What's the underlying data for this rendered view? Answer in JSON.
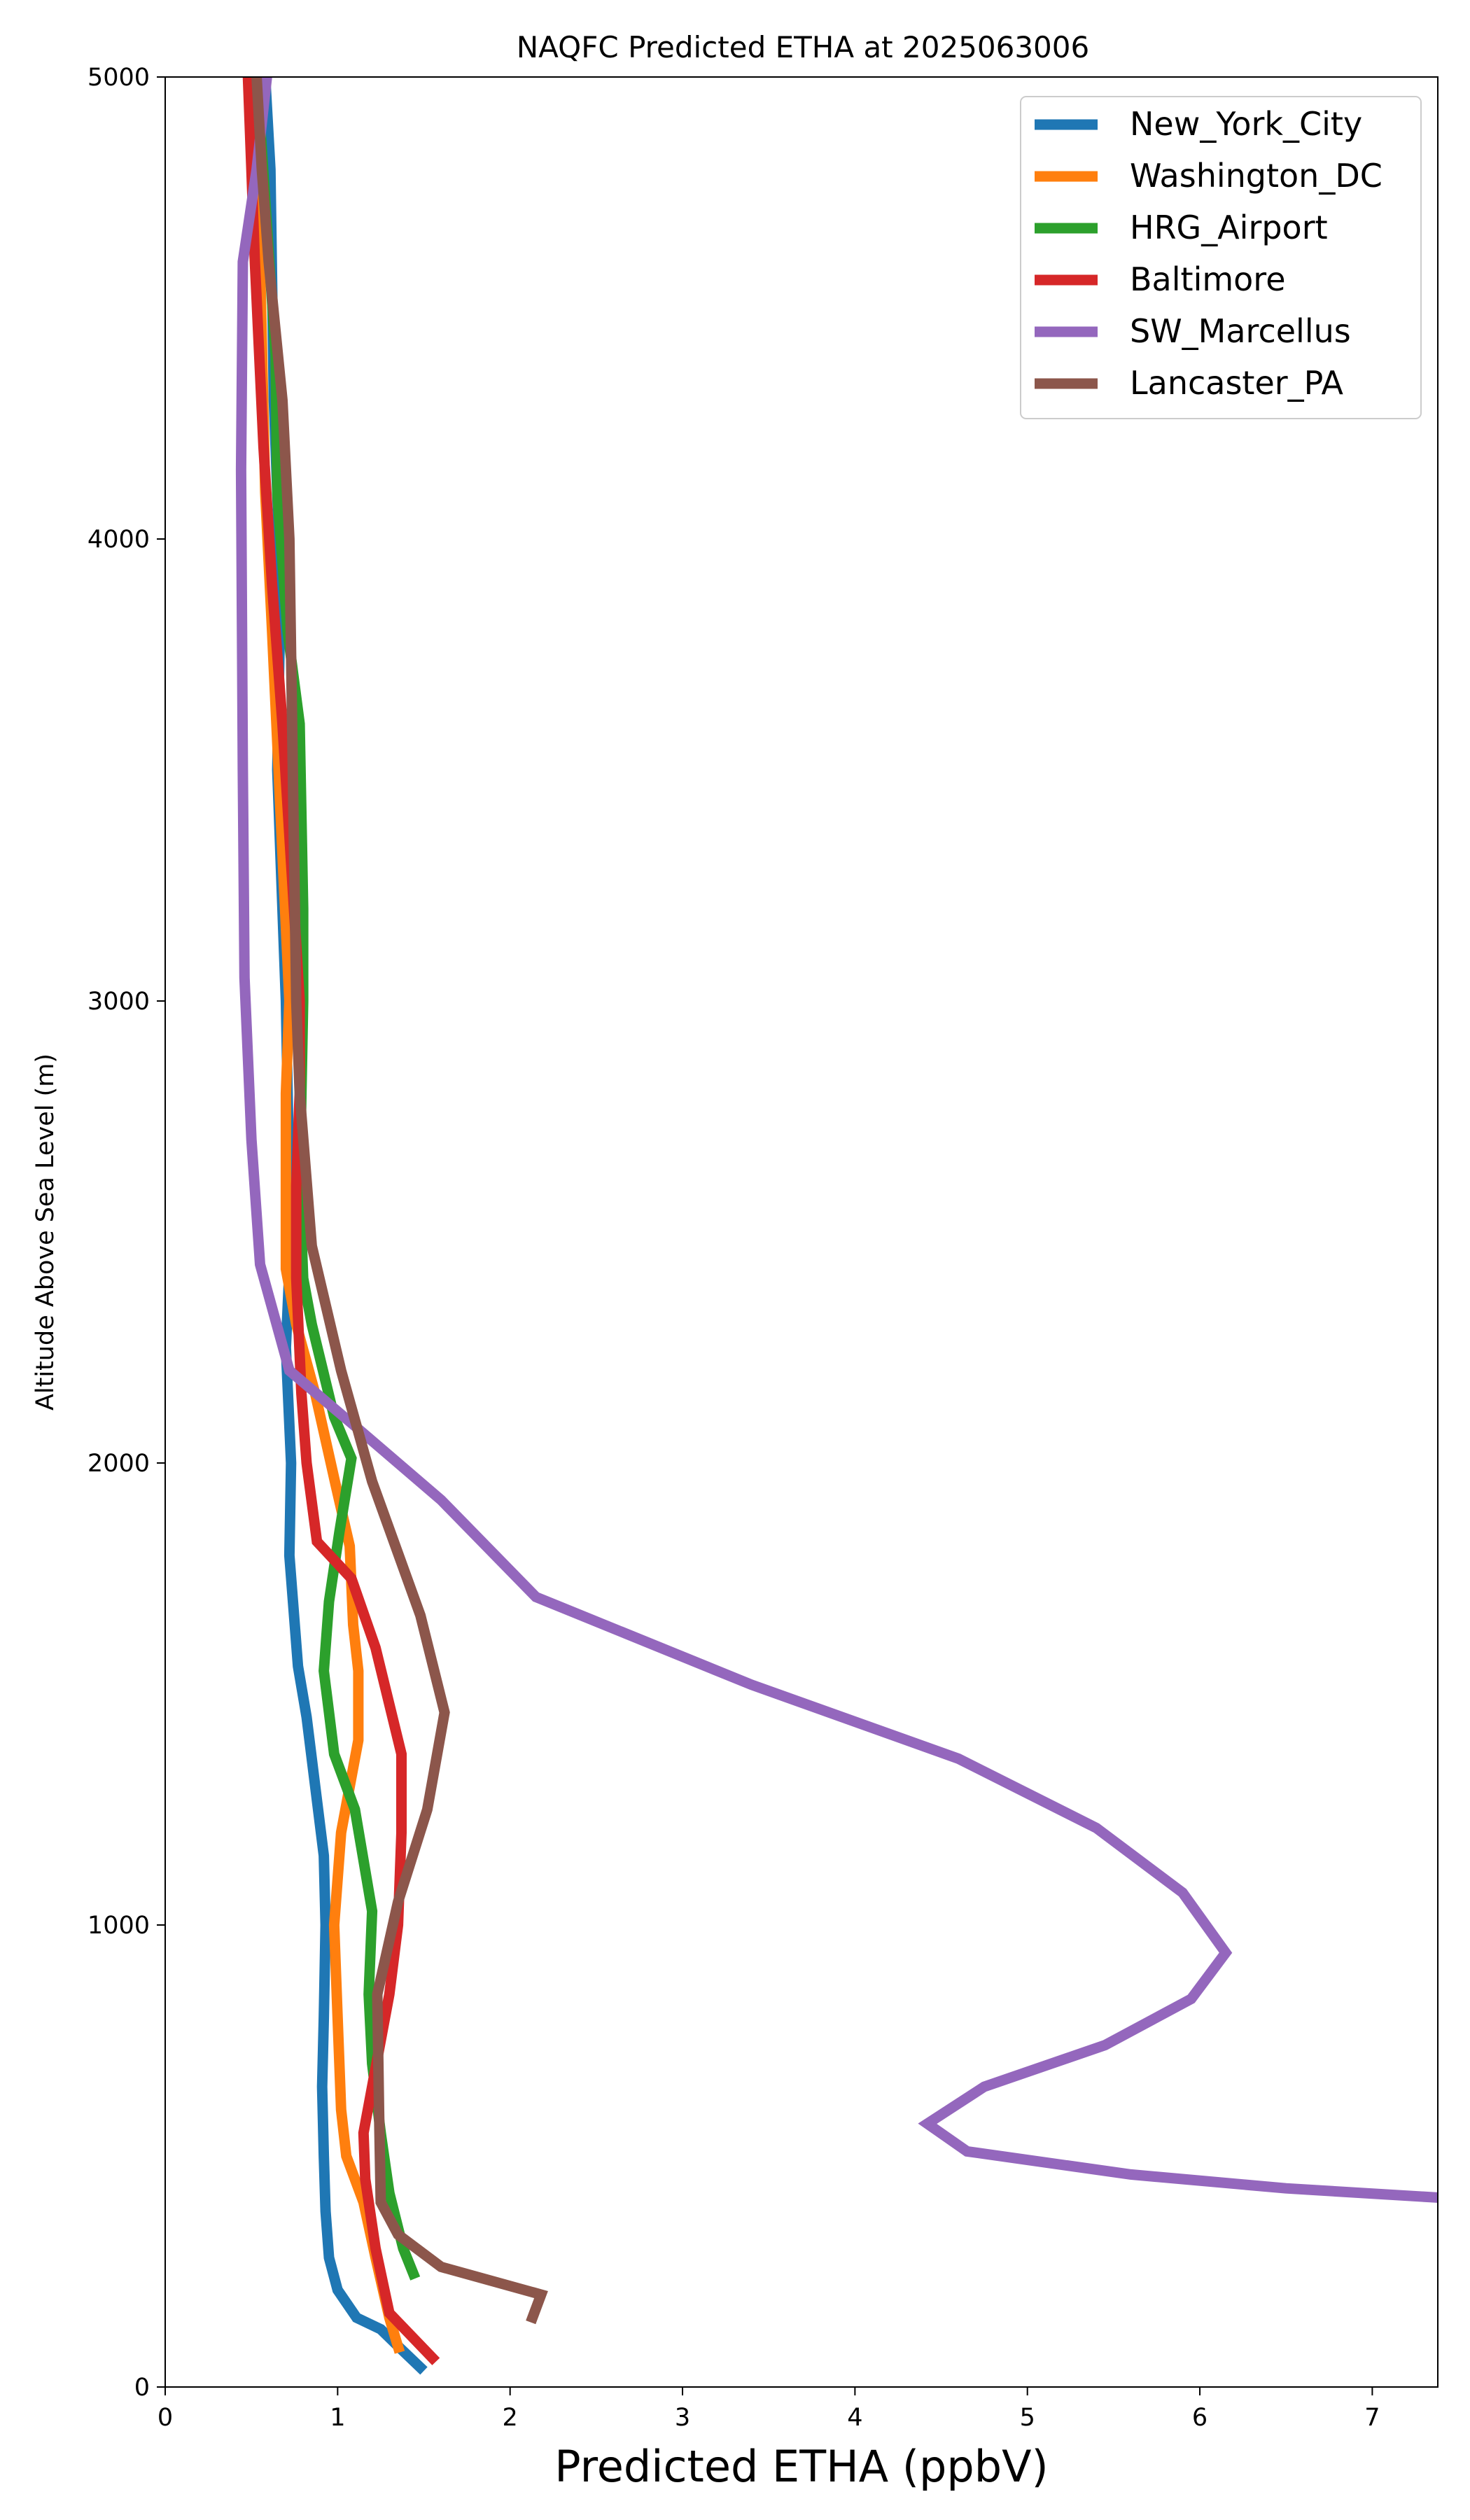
{
  "chart_data": {
    "type": "line",
    "title": "NAQFC Predicted ETHA at 2025063006",
    "xlabel": "Predicted ETHA (ppbV)",
    "ylabel": "Altitude Above Sea Level (m)",
    "xlim": [
      0,
      7.38
    ],
    "ylim": [
      0,
      5000
    ],
    "xticks": [
      0,
      1,
      2,
      3,
      4,
      5,
      6,
      7
    ],
    "yticks": [
      0,
      1000,
      2000,
      3000,
      4000,
      5000
    ],
    "grid": false,
    "legend_position": "top-right",
    "series": [
      {
        "name": "New_York_City",
        "color": "#1f77b4",
        "points": [
          [
            1.5,
            35
          ],
          [
            1.36,
            85
          ],
          [
            1.25,
            125
          ],
          [
            1.11,
            150
          ],
          [
            1.0,
            210
          ],
          [
            0.95,
            280
          ],
          [
            0.93,
            380
          ],
          [
            0.92,
            500
          ],
          [
            0.91,
            650
          ],
          [
            0.92,
            800
          ],
          [
            0.93,
            1000
          ],
          [
            0.92,
            1150
          ],
          [
            0.87,
            1300
          ],
          [
            0.82,
            1450
          ],
          [
            0.77,
            1560
          ],
          [
            0.72,
            1800
          ],
          [
            0.73,
            2000
          ],
          [
            0.7,
            2250
          ],
          [
            0.72,
            2420
          ],
          [
            0.72,
            2600
          ],
          [
            0.7,
            3000
          ],
          [
            0.65,
            3500
          ],
          [
            0.67,
            3900
          ],
          [
            0.63,
            4300
          ],
          [
            0.61,
            4800
          ],
          [
            0.58,
            5000
          ]
        ]
      },
      {
        "name": "Washington_DC",
        "color": "#ff7f0e",
        "points": [
          [
            1.36,
            75
          ],
          [
            1.3,
            150
          ],
          [
            1.22,
            280
          ],
          [
            1.15,
            400
          ],
          [
            1.05,
            500
          ],
          [
            1.02,
            600
          ],
          [
            1.0,
            800
          ],
          [
            0.98,
            1000
          ],
          [
            1.02,
            1200
          ],
          [
            1.12,
            1400
          ],
          [
            1.12,
            1550
          ],
          [
            1.09,
            1650
          ],
          [
            1.07,
            1820
          ],
          [
            0.99,
            1950
          ],
          [
            0.93,
            2050
          ],
          [
            0.87,
            2150
          ],
          [
            0.76,
            2300
          ],
          [
            0.7,
            2420
          ],
          [
            0.7,
            2600
          ],
          [
            0.7,
            2800
          ],
          [
            0.72,
            3000
          ],
          [
            0.67,
            3400
          ],
          [
            0.62,
            3800
          ],
          [
            0.58,
            4100
          ],
          [
            0.55,
            4600
          ],
          [
            0.54,
            5000
          ]
        ]
      },
      {
        "name": "HRG_Airport",
        "color": "#2ca02c",
        "points": [
          [
            1.45,
            235
          ],
          [
            1.38,
            300
          ],
          [
            1.3,
            420
          ],
          [
            1.25,
            550
          ],
          [
            1.2,
            700
          ],
          [
            1.18,
            850
          ],
          [
            1.2,
            1030
          ],
          [
            1.1,
            1250
          ],
          [
            0.98,
            1370
          ],
          [
            0.92,
            1550
          ],
          [
            0.95,
            1700
          ],
          [
            1.01,
            1850
          ],
          [
            1.08,
            2010
          ],
          [
            0.98,
            2100
          ],
          [
            0.85,
            2300
          ],
          [
            0.8,
            2400
          ],
          [
            0.78,
            2600
          ],
          [
            0.79,
            2800
          ],
          [
            0.8,
            3000
          ],
          [
            0.8,
            3200
          ],
          [
            0.78,
            3600
          ],
          [
            0.71,
            3800
          ],
          [
            0.65,
            4100
          ],
          [
            0.64,
            4400
          ],
          [
            0.55,
            4900
          ],
          [
            0.52,
            5000
          ]
        ]
      },
      {
        "name": "Baltimore",
        "color": "#d62728",
        "points": [
          [
            1.57,
            55
          ],
          [
            1.3,
            160
          ],
          [
            1.22,
            300
          ],
          [
            1.16,
            450
          ],
          [
            1.15,
            550
          ],
          [
            1.2,
            650
          ],
          [
            1.3,
            850
          ],
          [
            1.35,
            1000
          ],
          [
            1.37,
            1200
          ],
          [
            1.37,
            1370
          ],
          [
            1.22,
            1600
          ],
          [
            1.08,
            1750
          ],
          [
            0.88,
            1830
          ],
          [
            0.82,
            2000
          ],
          [
            0.79,
            2150
          ],
          [
            0.76,
            2400
          ],
          [
            0.76,
            2600
          ],
          [
            0.78,
            2800
          ],
          [
            0.78,
            3000
          ],
          [
            0.73,
            3300
          ],
          [
            0.68,
            3600
          ],
          [
            0.62,
            3900
          ],
          [
            0.57,
            4200
          ],
          [
            0.52,
            4600
          ],
          [
            0.48,
            5000
          ]
        ]
      },
      {
        "name": "SW_Marcellus",
        "color": "#9467bd",
        "points": [
          [
            7.38,
            410
          ],
          [
            6.5,
            430
          ],
          [
            5.6,
            460
          ],
          [
            4.65,
            510
          ],
          [
            4.42,
            570
          ],
          [
            4.75,
            650
          ],
          [
            5.45,
            740
          ],
          [
            5.95,
            840
          ],
          [
            6.15,
            940
          ],
          [
            5.9,
            1070
          ],
          [
            5.4,
            1210
          ],
          [
            4.6,
            1360
          ],
          [
            3.4,
            1520
          ],
          [
            2.15,
            1710
          ],
          [
            1.6,
            1920
          ],
          [
            1.1,
            2080
          ],
          [
            0.72,
            2200
          ],
          [
            0.55,
            2430
          ],
          [
            0.5,
            2700
          ],
          [
            0.46,
            3050
          ],
          [
            0.45,
            3500
          ],
          [
            0.44,
            4150
          ],
          [
            0.45,
            4600
          ],
          [
            0.53,
            4800
          ],
          [
            0.59,
            5000
          ]
        ]
      },
      {
        "name": "Lancaster_PA",
        "color": "#8c564b",
        "points": [
          [
            2.12,
            140
          ],
          [
            2.18,
            200
          ],
          [
            1.6,
            260
          ],
          [
            1.35,
            330
          ],
          [
            1.25,
            400
          ],
          [
            1.24,
            600
          ],
          [
            1.23,
            850
          ],
          [
            1.35,
            1050
          ],
          [
            1.52,
            1250
          ],
          [
            1.62,
            1460
          ],
          [
            1.48,
            1670
          ],
          [
            1.2,
            1960
          ],
          [
            1.02,
            2200
          ],
          [
            0.85,
            2470
          ],
          [
            0.78,
            2800
          ],
          [
            0.76,
            3000
          ],
          [
            0.74,
            3500
          ],
          [
            0.72,
            4000
          ],
          [
            0.68,
            4300
          ],
          [
            0.6,
            4600
          ],
          [
            0.56,
            4800
          ],
          [
            0.53,
            5000
          ]
        ]
      }
    ]
  }
}
